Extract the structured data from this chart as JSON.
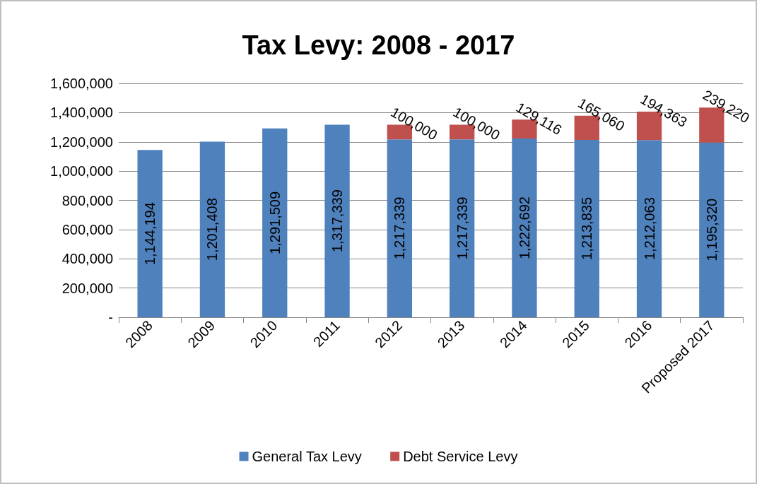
{
  "chart_data": {
    "type": "bar",
    "title": "Tax Levy: 2008 - 2017",
    "stacked": true,
    "categories": [
      "2008",
      "2009",
      "2010",
      "2011",
      "2012",
      "2013",
      "2014",
      "2015",
      "2016",
      "Proposed 2017"
    ],
    "series": [
      {
        "name": "General Tax Levy",
        "color": "#4f81bd",
        "values": [
          1144194,
          1201408,
          1291509,
          1317339,
          1217339,
          1217339,
          1222692,
          1213835,
          1212063,
          1195320
        ],
        "value_labels": [
          "1,144,194",
          "1,201,408",
          "1,291,509",
          "1,317,339",
          "1,217,339",
          "1,217,339",
          "1,222,692",
          "1,213,835",
          "1,212,063",
          "1,195,320"
        ]
      },
      {
        "name": "Debt Service Levy",
        "color": "#c0504d",
        "values": [
          null,
          null,
          null,
          null,
          100000,
          100000,
          129116,
          165060,
          194363,
          239220
        ],
        "value_labels": [
          null,
          null,
          null,
          null,
          "100,000",
          "100,000",
          "129,116",
          "165,060",
          "194,363",
          "239,220"
        ]
      }
    ],
    "ylim": [
      0,
      1600000
    ],
    "yticks": [
      {
        "value": 0,
        "label": "-"
      },
      {
        "value": 200000,
        "label": "200,000"
      },
      {
        "value": 400000,
        "label": "400,000"
      },
      {
        "value": 600000,
        "label": "600,000"
      },
      {
        "value": 800000,
        "label": "800,000"
      },
      {
        "value": 1000000,
        "label": "1,000,000"
      },
      {
        "value": 1200000,
        "label": "1,200,000"
      },
      {
        "value": 1400000,
        "label": "1,400,000"
      },
      {
        "value": 1600000,
        "label": "1,600,000"
      }
    ],
    "grid": "y",
    "legend": "bottom"
  }
}
